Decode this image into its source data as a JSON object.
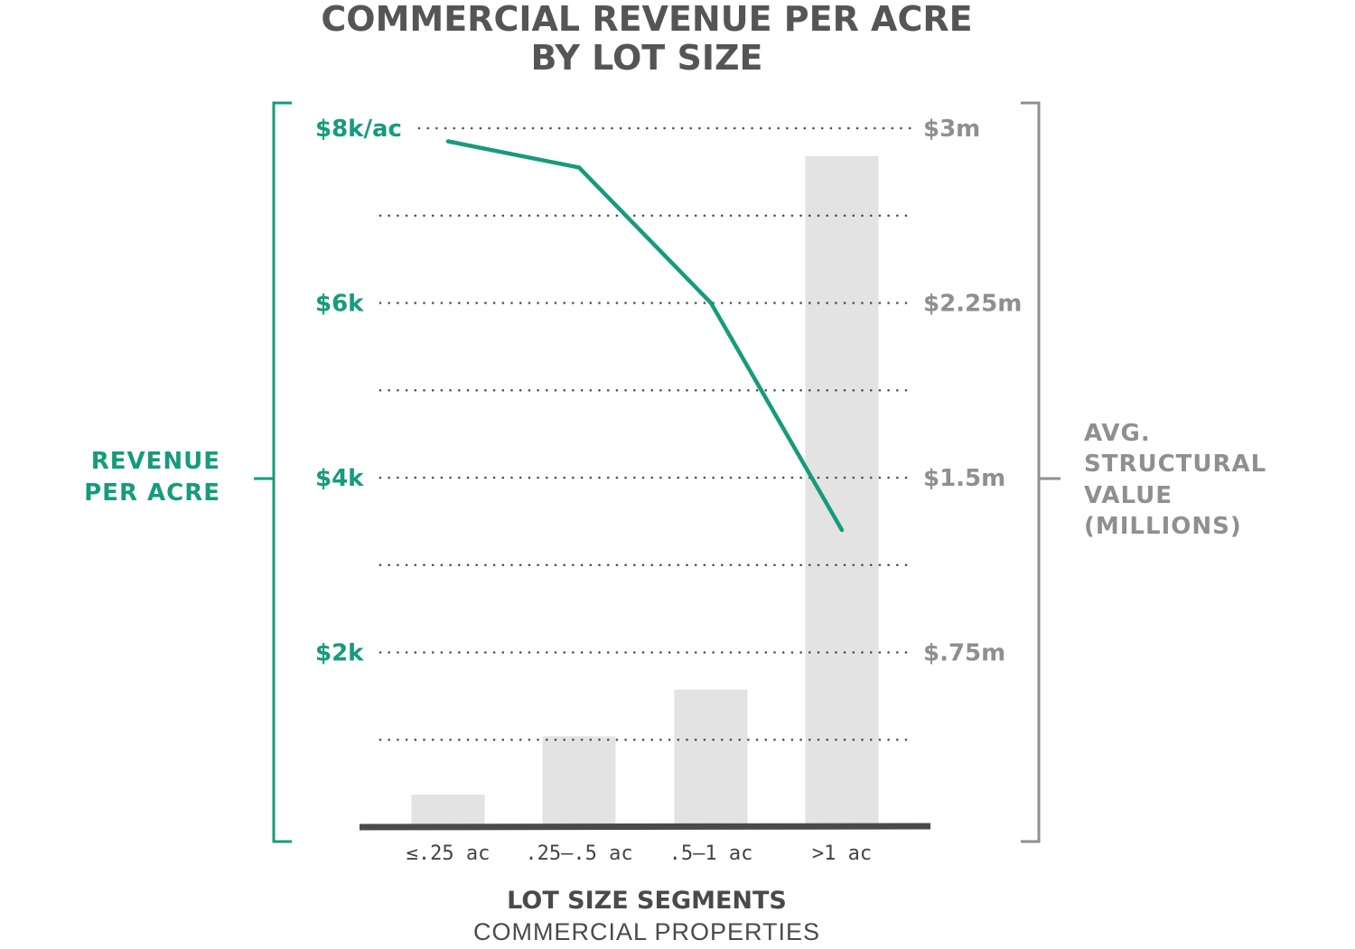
{
  "chart_data": {
    "type": "bar+line",
    "title_lines": [
      "COMMERCIAL REVENUE PER ACRE",
      "BY LOT SIZE"
    ],
    "categories": [
      "≤.25 ac",
      ".25–.5 ac",
      ".5–1 ac",
      ">1 ac"
    ],
    "xlabel": "LOT SIZE SEGMENTS",
    "xsublabel": "COMMERCIAL PROPERTIES",
    "left_axis": {
      "label_lines": [
        "REVENUE",
        "PER ACRE"
      ],
      "range": [
        0,
        8000
      ],
      "ticks": [
        {
          "value": 8000,
          "label": "$8k/ac"
        },
        {
          "value": 6000,
          "label": "$6k"
        },
        {
          "value": 4000,
          "label": "$4k"
        },
        {
          "value": 2000,
          "label": "$2k"
        }
      ],
      "color": "#169b7c"
    },
    "right_axis": {
      "label_lines": [
        "AVG.",
        "STRUCTURAL",
        "VALUE",
        "(MILLIONS)"
      ],
      "range": [
        0,
        3
      ],
      "ticks": [
        {
          "value": 3,
          "label": "$3m"
        },
        {
          "value": 2.25,
          "label": "$2.25m"
        },
        {
          "value": 1.5,
          "label": "$1.5m"
        },
        {
          "value": 0.75,
          "label": "$.75m"
        }
      ],
      "color": "#8f8f8f"
    },
    "gridlines": [
      8000,
      7000,
      6000,
      5000,
      4000,
      3000,
      2000,
      1000
    ],
    "series": [
      {
        "axis": "right",
        "kind": "bar",
        "values": [
          0.14,
          0.39,
          0.59,
          2.88
        ],
        "color": "#e3e3e3"
      },
      {
        "axis": "left",
        "kind": "line",
        "values": [
          7850,
          7550,
          6000,
          3400
        ],
        "color": "#169b7c"
      }
    ]
  }
}
